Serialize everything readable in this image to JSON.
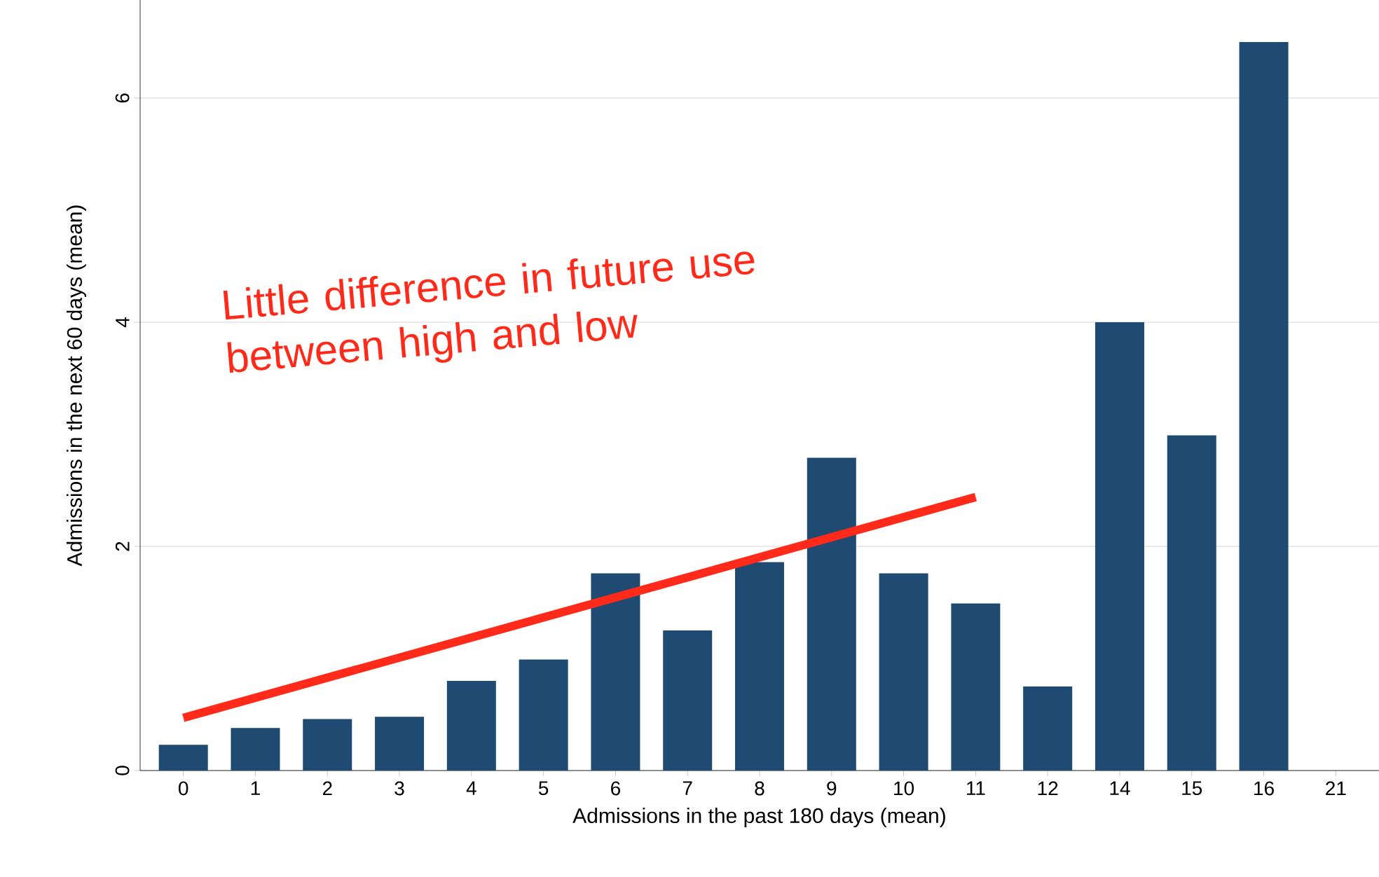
{
  "chart_data": {
    "type": "bar",
    "xlabel": "Admissions in the past 180 days (mean)",
    "ylabel": "Admissions in the next 60 days (mean)",
    "categories": [
      "0",
      "1",
      "2",
      "3",
      "4",
      "5",
      "6",
      "7",
      "8",
      "9",
      "10",
      "11",
      "12",
      "14",
      "15",
      "16",
      "21"
    ],
    "series": [
      {
        "color": "#1f4a72",
        "values": [
          0.23,
          0.38,
          0.46,
          0.48,
          0.8,
          0.99,
          1.76,
          1.25,
          1.86,
          2.79,
          1.76,
          1.49,
          0.75,
          4.0,
          2.99,
          6.5,
          null
        ]
      },
      {
        "type": "line",
        "color": "#ff2a1a",
        "x": [
          "0",
          "11"
        ],
        "values": [
          0.47,
          2.44
        ]
      }
    ],
    "annotations": [
      "Little difference in future use between high and low"
    ],
    "ylim": [
      0,
      6.875
    ],
    "yticks": [
      0,
      2,
      4,
      6
    ],
    "grid": "y"
  }
}
